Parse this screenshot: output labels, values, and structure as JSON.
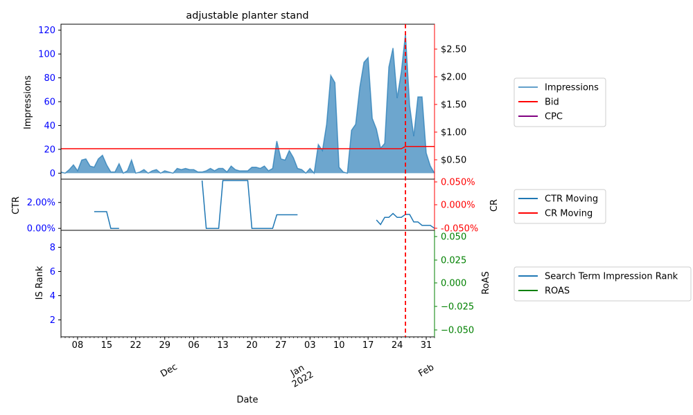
{
  "chart_data": {
    "type": "line",
    "title": "adjustable planter stand",
    "xlabel": "Date",
    "x_range": [
      "2021-11-04",
      "2022-02-02"
    ],
    "x_ticks_minor": [
      "08",
      "15",
      "22",
      "29",
      "06",
      "13",
      "20",
      "27",
      "03",
      "10",
      "17",
      "24",
      "31"
    ],
    "x_ticks_month": [
      {
        "label": "Dec",
        "date": "2021-12-01"
      },
      {
        "label": "Jan\n2022",
        "date": "2022-01-01"
      },
      {
        "label": "Feb",
        "date": "2022-02-01"
      }
    ],
    "vline_date": "2022-01-26",
    "colors": {
      "impressions": "#1f77b4",
      "bid": "#ff0000",
      "cpc": "#800080",
      "left_axis": "#0000ff",
      "right_axis_top": "#ff0000",
      "right_axis_bottom": "#008000"
    },
    "panels": [
      {
        "ylabel": "Impressions",
        "ylim": [
          -5,
          125
        ],
        "yticks": [
          "0",
          "20",
          "40",
          "60",
          "80",
          "100",
          "120"
        ],
        "right_ylim": [
          0.15,
          2.95
        ],
        "right_yticks": [
          "$0.50",
          "$1.00",
          "$1.50",
          "$2.00",
          "$2.50"
        ],
        "legend": [
          "Impressions",
          "Bid",
          "CPC"
        ],
        "series": [
          {
            "name": "Impressions",
            "style": "area",
            "axis": "left",
            "x": [
              "2021-11-04",
              "2021-11-05",
              "2021-11-06",
              "2021-11-07",
              "2021-11-08",
              "2021-11-09",
              "2021-11-10",
              "2021-11-11",
              "2021-11-12",
              "2021-11-13",
              "2021-11-14",
              "2021-11-15",
              "2021-11-16",
              "2021-11-17",
              "2021-11-18",
              "2021-11-19",
              "2021-11-20",
              "2021-11-21",
              "2021-11-22",
              "2021-11-23",
              "2021-11-24",
              "2021-11-25",
              "2021-11-26",
              "2021-11-27",
              "2021-11-28",
              "2021-11-29",
              "2021-11-30",
              "2021-12-01",
              "2021-12-02",
              "2021-12-03",
              "2021-12-04",
              "2021-12-05",
              "2021-12-06",
              "2021-12-07",
              "2021-12-08",
              "2021-12-09",
              "2021-12-10",
              "2021-12-11",
              "2021-12-12",
              "2021-12-13",
              "2021-12-14",
              "2021-12-15",
              "2021-12-16",
              "2021-12-17",
              "2021-12-18",
              "2021-12-19",
              "2021-12-20",
              "2021-12-21",
              "2021-12-22",
              "2021-12-23",
              "2021-12-24",
              "2021-12-25",
              "2021-12-26",
              "2021-12-27",
              "2021-12-28",
              "2021-12-29",
              "2021-12-30",
              "2021-12-31",
              "2022-01-01",
              "2022-01-02",
              "2022-01-03",
              "2022-01-04",
              "2022-01-05",
              "2022-01-06",
              "2022-01-07",
              "2022-01-08",
              "2022-01-09",
              "2022-01-10",
              "2022-01-11",
              "2022-01-12",
              "2022-01-13",
              "2022-01-14",
              "2022-01-15",
              "2022-01-16",
              "2022-01-17",
              "2022-01-18",
              "2022-01-19",
              "2022-01-20",
              "2022-01-21",
              "2022-01-22",
              "2022-01-23",
              "2022-01-24",
              "2022-01-25",
              "2022-01-26",
              "2022-01-27",
              "2022-01-28",
              "2022-01-29",
              "2022-01-30",
              "2022-01-31",
              "2022-02-01",
              "2022-02-02"
            ],
            "y": [
              1,
              0,
              3,
              7,
              2,
              11,
              12,
              6,
              5,
              12,
              15,
              7,
              1,
              1,
              8,
              0,
              2,
              11,
              0,
              1,
              3,
              0,
              2,
              3,
              0,
              2,
              1,
              0,
              4,
              3,
              4,
              3,
              3,
              1,
              1,
              2,
              4,
              2,
              4,
              4,
              1,
              6,
              3,
              2,
              2,
              2,
              5,
              5,
              4,
              6,
              2,
              4,
              27,
              12,
              11,
              19,
              13,
              4,
              3,
              0,
              4,
              0,
              24,
              19,
              41,
              82,
              76,
              5,
              1,
              0,
              36,
              41,
              72,
              93,
              97,
              46,
              37,
              21,
              25,
              89,
              105,
              63,
              85,
              117,
              57,
              31,
              64,
              64,
              17,
              6,
              0
            ]
          },
          {
            "name": "Bid",
            "style": "line",
            "axis": "right",
            "x": [
              "2021-11-04",
              "2022-01-25",
              "2022-01-26",
              "2022-02-02"
            ],
            "y": [
              0.7,
              0.7,
              0.74,
              0.74
            ]
          }
        ]
      },
      {
        "ylabel": "CTR",
        "yticks": [
          "0.00%",
          "2.00%"
        ],
        "ylim": [
          -0.0015,
          0.038
        ],
        "right_ylabel": "CR",
        "right_yticks": [
          "0.050%",
          "0.000%",
          "-0.050%"
        ],
        "legend": [
          "CTR Moving",
          "CR Moving"
        ],
        "series": [
          {
            "name": "CTR Moving",
            "segments": [
              {
                "x": [
                  "2021-11-12",
                  "2021-11-15",
                  "2021-11-16",
                  "2021-11-18"
                ],
                "y": [
                  0.0129,
                  0.0129,
                  0.0,
                  0.0
                ]
              },
              {
                "x": [
                  "2021-12-08",
                  "2021-12-09",
                  "2021-12-12",
                  "2021-12-13",
                  "2021-12-19",
                  "2021-12-20",
                  "2021-12-25",
                  "2021-12-26",
                  "2021-12-31"
                ],
                "y": [
                  0.038,
                  0.0,
                  0.0,
                  0.038,
                  0.038,
                  0.0,
                  0.0,
                  0.0105,
                  0.0105
                ]
              },
              {
                "x": [
                  "2022-01-19",
                  "2022-01-20",
                  "2022-01-21",
                  "2022-01-22",
                  "2022-01-23",
                  "2022-01-24",
                  "2022-01-25",
                  "2022-01-26",
                  "2022-01-27",
                  "2022-01-28",
                  "2022-01-29",
                  "2022-01-30",
                  "2022-01-31",
                  "2022-02-01",
                  "2022-02-02"
                ],
                "y": [
                  0.0065,
                  0.003,
                  0.0085,
                  0.0085,
                  0.0115,
                  0.0085,
                  0.0085,
                  0.0108,
                  0.0108,
                  0.005,
                  0.005,
                  0.0023,
                  0.0023,
                  0.0023,
                  0.0
                ]
              }
            ]
          }
        ]
      },
      {
        "ylabel": "IS Rank",
        "yticks": [
          "2",
          "4",
          "6",
          "8"
        ],
        "ylim": [
          0.6,
          9.4
        ],
        "right_ylabel": "RoAS",
        "right_yticks": [
          "0.050",
          "0.025",
          "0.000",
          "−0.025",
          "−0.050"
        ],
        "legend": [
          "Search Term Impression Rank",
          "ROAS"
        ],
        "series": []
      }
    ]
  }
}
